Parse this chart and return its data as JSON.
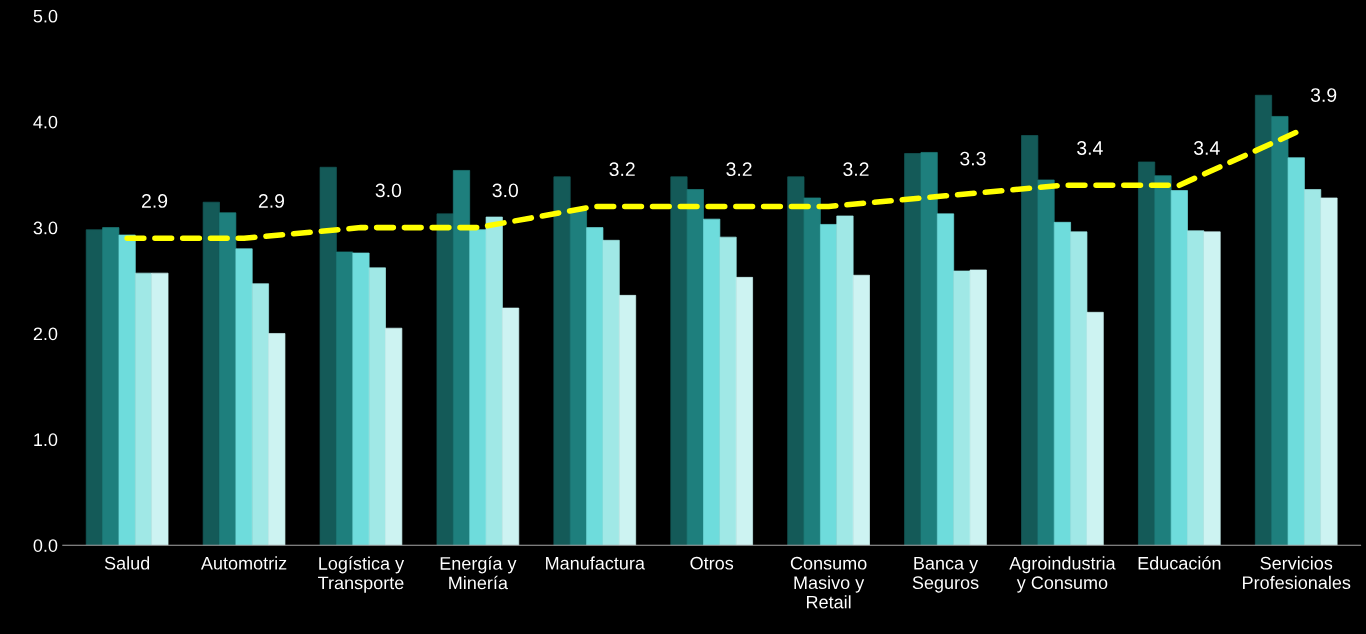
{
  "chart_data": {
    "type": "bar",
    "categories": [
      "Salud",
      "Automotriz",
      "Logística y\nTransporte",
      "Energía y\nMinería",
      "Manufactura",
      "Otros",
      "Consumo\nMasivo y\nRetail",
      "Banca y\nSeguros",
      "Agroindustria\ny Consumo",
      "Educación",
      "Servicios\nProfesionales"
    ],
    "series": [
      {
        "color": "#145a58",
        "values": [
          2.98,
          3.24,
          3.57,
          3.13,
          3.48,
          3.48,
          3.48,
          3.7,
          3.87,
          3.62,
          4.25
        ]
      },
      {
        "color": "#1e7f7d",
        "values": [
          3.0,
          3.14,
          2.77,
          3.54,
          3.16,
          3.36,
          3.28,
          3.71,
          3.45,
          3.49,
          4.05
        ]
      },
      {
        "color": "#6edcdc",
        "values": [
          2.93,
          2.8,
          2.76,
          2.98,
          3.0,
          3.08,
          3.03,
          3.13,
          3.05,
          3.35,
          3.66
        ]
      },
      {
        "color": "#a0e8e6",
        "values": [
          2.57,
          2.47,
          2.62,
          3.1,
          2.88,
          2.91,
          3.11,
          2.59,
          2.96,
          2.97,
          3.36
        ]
      },
      {
        "color": "#cdf3f2",
        "values": [
          2.57,
          2.0,
          2.05,
          2.24,
          2.36,
          2.53,
          2.55,
          2.6,
          2.2,
          2.96,
          3.28
        ]
      },
      {
        "type": "line",
        "color": "#ffff00",
        "line_style": "dashed",
        "values": [
          2.9,
          2.9,
          3.0,
          3.0,
          3.2,
          3.2,
          3.2,
          3.3,
          3.4,
          3.4,
          3.9
        ],
        "value_labels": [
          "2.9",
          "2.9",
          "3.0",
          "3.0",
          "3.2",
          "3.2",
          "3.2",
          "3.3",
          "3.4",
          "3.4",
          "3.9"
        ]
      }
    ],
    "ylim": [
      0,
      5
    ],
    "yticks": [
      {
        "value": 0,
        "label": "0.0"
      },
      {
        "value": 1,
        "label": "1.0"
      },
      {
        "value": 2,
        "label": "2.0"
      },
      {
        "value": 3,
        "label": "3.0"
      },
      {
        "value": 4,
        "label": "4.0"
      },
      {
        "value": 5,
        "label": "5.0"
      }
    ],
    "grid": false,
    "legend": false
  }
}
